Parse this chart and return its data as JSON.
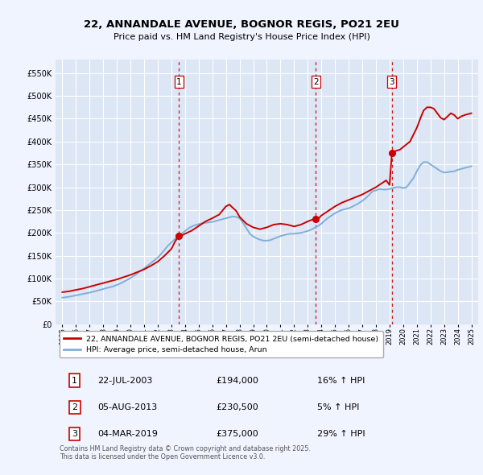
{
  "title": "22, ANNANDALE AVENUE, BOGNOR REGIS, PO21 2EU",
  "subtitle": "Price paid vs. HM Land Registry's House Price Index (HPI)",
  "background_color": "#f0f4ff",
  "plot_bg_color": "#dce6f5",
  "grid_color": "#ffffff",
  "hpi_color": "#7fb0d8",
  "price_color": "#cc0000",
  "ylim": [
    0,
    580000
  ],
  "yticks": [
    0,
    50000,
    100000,
    150000,
    200000,
    250000,
    300000,
    350000,
    400000,
    450000,
    500000,
    550000
  ],
  "xlim_start": 1994.5,
  "xlim_end": 2025.5,
  "xticks": [
    1995,
    1996,
    1997,
    1998,
    1999,
    2000,
    2001,
    2002,
    2003,
    2004,
    2005,
    2006,
    2007,
    2008,
    2009,
    2010,
    2011,
    2012,
    2013,
    2014,
    2015,
    2016,
    2017,
    2018,
    2019,
    2020,
    2021,
    2022,
    2023,
    2024,
    2025
  ],
  "sale_dates": [
    2003.55,
    2013.6,
    2019.17
  ],
  "sale_prices": [
    194000,
    230500,
    375000
  ],
  "sale_labels": [
    "1",
    "2",
    "3"
  ],
  "legend_price_label": "22, ANNANDALE AVENUE, BOGNOR REGIS, PO21 2EU (semi-detached house)",
  "legend_hpi_label": "HPI: Average price, semi-detached house, Arun",
  "table_rows": [
    [
      "1",
      "22-JUL-2003",
      "£194,000",
      "16% ↑ HPI"
    ],
    [
      "2",
      "05-AUG-2013",
      "£230,500",
      "5% ↑ HPI"
    ],
    [
      "3",
      "04-MAR-2019",
      "£375,000",
      "29% ↑ HPI"
    ]
  ],
  "footer_text": "Contains HM Land Registry data © Crown copyright and database right 2025.\nThis data is licensed under the Open Government Licence v3.0.",
  "hpi_years": [
    1995,
    1995.25,
    1995.5,
    1995.75,
    1996,
    1996.25,
    1996.5,
    1996.75,
    1997,
    1997.25,
    1997.5,
    1997.75,
    1998,
    1998.25,
    1998.5,
    1998.75,
    1999,
    1999.25,
    1999.5,
    1999.75,
    2000,
    2000.25,
    2000.5,
    2000.75,
    2001,
    2001.25,
    2001.5,
    2001.75,
    2002,
    2002.25,
    2002.5,
    2002.75,
    2003,
    2003.25,
    2003.5,
    2003.75,
    2004,
    2004.25,
    2004.5,
    2004.75,
    2005,
    2005.25,
    2005.5,
    2005.75,
    2006,
    2006.25,
    2006.5,
    2006.75,
    2007,
    2007.25,
    2007.5,
    2007.75,
    2008,
    2008.25,
    2008.5,
    2008.75,
    2009,
    2009.25,
    2009.5,
    2009.75,
    2010,
    2010.25,
    2010.5,
    2010.75,
    2011,
    2011.25,
    2011.5,
    2011.75,
    2012,
    2012.25,
    2012.5,
    2012.75,
    2013,
    2013.25,
    2013.5,
    2013.75,
    2014,
    2014.25,
    2014.5,
    2014.75,
    2015,
    2015.25,
    2015.5,
    2015.75,
    2016,
    2016.25,
    2016.5,
    2016.75,
    2017,
    2017.25,
    2017.5,
    2017.75,
    2018,
    2018.25,
    2018.5,
    2018.75,
    2019,
    2019.25,
    2019.5,
    2019.75,
    2020,
    2020.25,
    2020.5,
    2020.75,
    2021,
    2021.25,
    2021.5,
    2021.75,
    2022,
    2022.25,
    2022.5,
    2022.75,
    2023,
    2023.25,
    2023.5,
    2023.75,
    2024,
    2024.25,
    2024.5,
    2024.75,
    2025
  ],
  "hpi_values": [
    58000,
    59000,
    60000,
    61500,
    63000,
    64500,
    66000,
    67500,
    69000,
    71000,
    73000,
    75000,
    77000,
    79000,
    81000,
    83000,
    86000,
    89000,
    93000,
    97000,
    101000,
    106000,
    111000,
    117000,
    122000,
    128000,
    134000,
    140000,
    146000,
    154000,
    163000,
    172000,
    179000,
    186000,
    192000,
    198000,
    204000,
    210000,
    214000,
    217000,
    219000,
    221000,
    222000,
    223000,
    224000,
    226000,
    228000,
    230000,
    232000,
    234000,
    236000,
    235000,
    232000,
    222000,
    210000,
    198000,
    192000,
    188000,
    185000,
    183000,
    183000,
    184000,
    187000,
    190000,
    193000,
    195000,
    197000,
    198000,
    198000,
    199000,
    200000,
    202000,
    204000,
    207000,
    211000,
    215000,
    220000,
    227000,
    233000,
    238000,
    243000,
    247000,
    250000,
    252000,
    254000,
    257000,
    261000,
    265000,
    270000,
    276000,
    283000,
    291000,
    293000,
    296000,
    295000,
    295000,
    296000,
    298000,
    300000,
    300000,
    298000,
    300000,
    310000,
    320000,
    335000,
    348000,
    355000,
    355000,
    350000,
    345000,
    340000,
    335000,
    332000,
    333000,
    334000,
    335000,
    338000,
    340000,
    342000,
    344000,
    346000
  ],
  "price_years": [
    1995,
    1995.5,
    1996,
    1996.5,
    1997,
    1997.5,
    1998,
    1998.5,
    1999,
    1999.5,
    2000,
    2000.5,
    2001,
    2001.5,
    2002,
    2002.5,
    2003,
    2003.25,
    2003.55,
    2003.75,
    2004,
    2004.5,
    2005,
    2005.5,
    2006,
    2006.5,
    2007,
    2007.25,
    2007.5,
    2007.75,
    2008,
    2008.5,
    2009,
    2009.5,
    2010,
    2010.5,
    2011,
    2011.5,
    2012,
    2012.5,
    2013,
    2013.25,
    2013.6,
    2013.75,
    2014,
    2014.5,
    2015,
    2015.5,
    2016,
    2016.5,
    2017,
    2017.5,
    2018,
    2018.25,
    2018.5,
    2018.75,
    2019,
    2019.17,
    2019.5,
    2019.75,
    2020,
    2020.5,
    2021,
    2021.25,
    2021.5,
    2021.75,
    2022,
    2022.25,
    2022.5,
    2022.75,
    2023,
    2023.25,
    2023.5,
    2023.75,
    2024,
    2024.25,
    2024.5,
    2024.75,
    2025
  ],
  "price_values": [
    70000,
    72000,
    75000,
    78000,
    82000,
    86000,
    90000,
    94000,
    98000,
    103000,
    108000,
    114000,
    120000,
    128000,
    137000,
    150000,
    165000,
    180000,
    194000,
    194000,
    198000,
    205000,
    215000,
    225000,
    232000,
    240000,
    258000,
    262000,
    255000,
    248000,
    235000,
    220000,
    212000,
    208000,
    212000,
    218000,
    220000,
    218000,
    214000,
    218000,
    225000,
    228000,
    230500,
    230500,
    238000,
    248000,
    258000,
    266000,
    272000,
    278000,
    284000,
    292000,
    300000,
    305000,
    310000,
    315000,
    305000,
    375000,
    380000,
    382000,
    388000,
    400000,
    430000,
    450000,
    468000,
    475000,
    475000,
    472000,
    462000,
    452000,
    448000,
    455000,
    462000,
    458000,
    450000,
    455000,
    458000,
    460000,
    462000
  ]
}
